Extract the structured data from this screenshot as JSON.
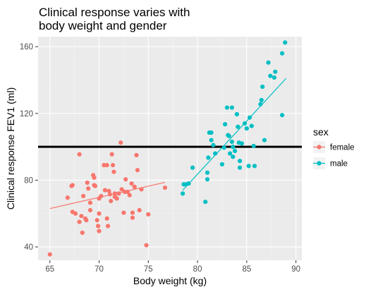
{
  "chart_data": {
    "type": "scatter",
    "title_lines": [
      "Clinical response varies with",
      " body weight and gender"
    ],
    "xlabel": "Body weight (kg)",
    "ylabel": "Clinical response FEV1 (ml)",
    "xlim": [
      63.8,
      90.6
    ],
    "ylim": [
      32,
      166
    ],
    "xticks": [
      65,
      70,
      75,
      80,
      85,
      90
    ],
    "yticks": [
      40,
      80,
      120,
      160
    ],
    "grid": true,
    "reference_line": {
      "y": 100,
      "color": "#000000"
    },
    "legend": {
      "title": "sex",
      "position": "right"
    },
    "series": [
      {
        "name": "female",
        "color": "#F8766D",
        "fit": {
          "x": [
            65.0,
            76.7
          ],
          "y": [
            63.0,
            78.7
          ]
        },
        "points": [
          [
            65.0,
            35.5
          ],
          [
            66.8,
            69.5
          ],
          [
            67.2,
            76.5
          ],
          [
            67.3,
            77.0
          ],
          [
            67.3,
            61.0
          ],
          [
            67.6,
            60.0
          ],
          [
            68.0,
            95.5
          ],
          [
            68.0,
            55.0
          ],
          [
            68.2,
            58.5
          ],
          [
            68.3,
            48.5
          ],
          [
            68.4,
            70.5
          ],
          [
            68.6,
            57.0
          ],
          [
            68.7,
            56.0
          ],
          [
            68.8,
            78.5
          ],
          [
            68.9,
            75.0
          ],
          [
            69.1,
            66.5
          ],
          [
            69.1,
            62.0
          ],
          [
            69.4,
            83.0
          ],
          [
            69.5,
            81.5
          ],
          [
            69.5,
            77.0
          ],
          [
            69.6,
            76.5
          ],
          [
            69.8,
            56.0
          ],
          [
            69.9,
            52.5
          ],
          [
            70.0,
            69.0
          ],
          [
            70.0,
            60.0
          ],
          [
            70.0,
            49.5
          ],
          [
            70.2,
            70.5
          ],
          [
            70.5,
            89.0
          ],
          [
            70.6,
            74.0
          ],
          [
            70.8,
            89.0
          ],
          [
            70.8,
            57.0
          ],
          [
            70.9,
            52.5
          ],
          [
            71.0,
            73.5
          ],
          [
            71.1,
            71.5
          ],
          [
            71.2,
            67.5
          ],
          [
            71.3,
            95.5
          ],
          [
            71.4,
            89.0
          ],
          [
            71.5,
            85.0
          ],
          [
            71.6,
            72.0
          ],
          [
            71.6,
            70.0
          ],
          [
            71.8,
            69.0
          ],
          [
            72.0,
            72.0
          ],
          [
            72.2,
            102.5
          ],
          [
            72.3,
            74.5
          ],
          [
            72.5,
            60.5
          ],
          [
            72.6,
            73.0
          ],
          [
            72.7,
            80.5
          ],
          [
            72.9,
            73.0
          ],
          [
            73.1,
            71.0
          ],
          [
            73.3,
            78.0
          ],
          [
            73.4,
            60.5
          ],
          [
            73.4,
            57.5
          ],
          [
            73.6,
            76.0
          ],
          [
            73.8,
            95.0
          ],
          [
            73.9,
            86.0
          ],
          [
            74.1,
            62.0
          ],
          [
            74.3,
            74.5
          ],
          [
            74.8,
            41.0
          ],
          [
            75.0,
            59.5
          ],
          [
            76.7,
            75.5
          ]
        ]
      },
      {
        "name": "male",
        "color": "#00BFC4",
        "fit": {
          "x": [
            78.5,
            89.0
          ],
          "y": [
            74.0,
            141.0
          ]
        },
        "points": [
          [
            78.5,
            72.0
          ],
          [
            78.6,
            77.5
          ],
          [
            78.8,
            77.5
          ],
          [
            79.1,
            78.0
          ],
          [
            79.5,
            87.5
          ],
          [
            80.8,
            67.0
          ],
          [
            81.0,
            80.5
          ],
          [
            81.0,
            84.5
          ],
          [
            81.1,
            93.5
          ],
          [
            81.2,
            108.5
          ],
          [
            81.4,
            108.5
          ],
          [
            81.4,
            104.0
          ],
          [
            81.6,
            101.0
          ],
          [
            81.8,
            96.0
          ],
          [
            82.5,
            89.5
          ],
          [
            82.7,
            99.5
          ],
          [
            82.8,
            113.5
          ],
          [
            83.0,
            123.5
          ],
          [
            83.1,
            107.0
          ],
          [
            83.2,
            106.5
          ],
          [
            83.3,
            96.0
          ],
          [
            83.5,
            123.5
          ],
          [
            83.5,
            103.0
          ],
          [
            83.6,
            94.0
          ],
          [
            83.6,
            100.0
          ],
          [
            83.8,
            97.5
          ],
          [
            84.0,
            119.5
          ],
          [
            84.1,
            112.0
          ],
          [
            84.2,
            102.5
          ],
          [
            84.3,
            91.5
          ],
          [
            84.3,
            87.5
          ],
          [
            84.5,
            102.0
          ],
          [
            84.8,
            114.0
          ],
          [
            85.0,
            111.0
          ],
          [
            85.2,
            88.5
          ],
          [
            85.3,
            117.5
          ],
          [
            85.5,
            112.5
          ],
          [
            85.7,
            100.5
          ],
          [
            85.8,
            88.5
          ],
          [
            86.4,
            125.5
          ],
          [
            86.5,
            128.0
          ],
          [
            86.6,
            136.0
          ],
          [
            86.8,
            104.0
          ],
          [
            87.2,
            150.5
          ],
          [
            87.4,
            142.5
          ],
          [
            87.8,
            141.5
          ],
          [
            87.9,
            145.0
          ],
          [
            88.6,
            156.0
          ],
          [
            88.6,
            119.0
          ],
          [
            88.9,
            162.5
          ]
        ]
      }
    ]
  }
}
